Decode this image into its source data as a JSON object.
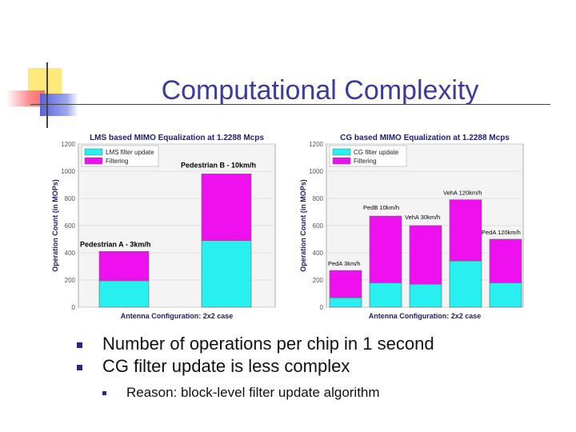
{
  "slide": {
    "title": "Computational Complexity",
    "bullets": [
      "Number of operations per chip in 1 second",
      "CG filter update is less complex"
    ],
    "sub_bullets": [
      "Reason: block-level filter update algorithm"
    ]
  },
  "colors": {
    "filter_update": "#28f0f0",
    "filtering": "#ee10ee",
    "title": "#3c3c9c"
  },
  "chart_data": [
    {
      "type": "bar",
      "stacked": true,
      "title": "LMS based MIMO Equalization at 1.2288 Mcps",
      "xlabel": "Antenna Configuration: 2x2 case",
      "ylabel": "Operation Count (in MOPs)",
      "ylim": [
        0,
        1200
      ],
      "yticks": [
        0,
        200,
        400,
        600,
        800,
        1000,
        1200
      ],
      "grid": true,
      "legend": [
        "LMS filter update",
        "Filtering"
      ],
      "legend_position": "top-left",
      "categories": [
        "Pedestrian A - 3km/h",
        "Pedestrian B - 10km/h"
      ],
      "series": [
        {
          "name": "LMS filter update",
          "values": [
            195,
            490
          ]
        },
        {
          "name": "Filtering",
          "values": [
            215,
            490
          ]
        }
      ]
    },
    {
      "type": "bar",
      "stacked": true,
      "title": "CG based MIMO Equalization at 1.2288 Mcps",
      "xlabel": "Antenna Configuration: 2x2 case",
      "ylabel": "Operation Count (in MOPs)",
      "ylim": [
        0,
        1200
      ],
      "yticks": [
        0,
        200,
        400,
        600,
        800,
        1000,
        1200
      ],
      "grid": true,
      "legend": [
        "CG filter update",
        "Filtering"
      ],
      "legend_position": "top-left",
      "categories": [
        "PedA 3km/h",
        "PedB 10km/h",
        "VehA 30km/h",
        "VehA 120km/h",
        "PedA 120km/h"
      ],
      "series": [
        {
          "name": "CG filter update",
          "values": [
            70,
            180,
            170,
            340,
            180
          ]
        },
        {
          "name": "Filtering",
          "values": [
            200,
            490,
            430,
            450,
            320
          ]
        }
      ]
    }
  ]
}
